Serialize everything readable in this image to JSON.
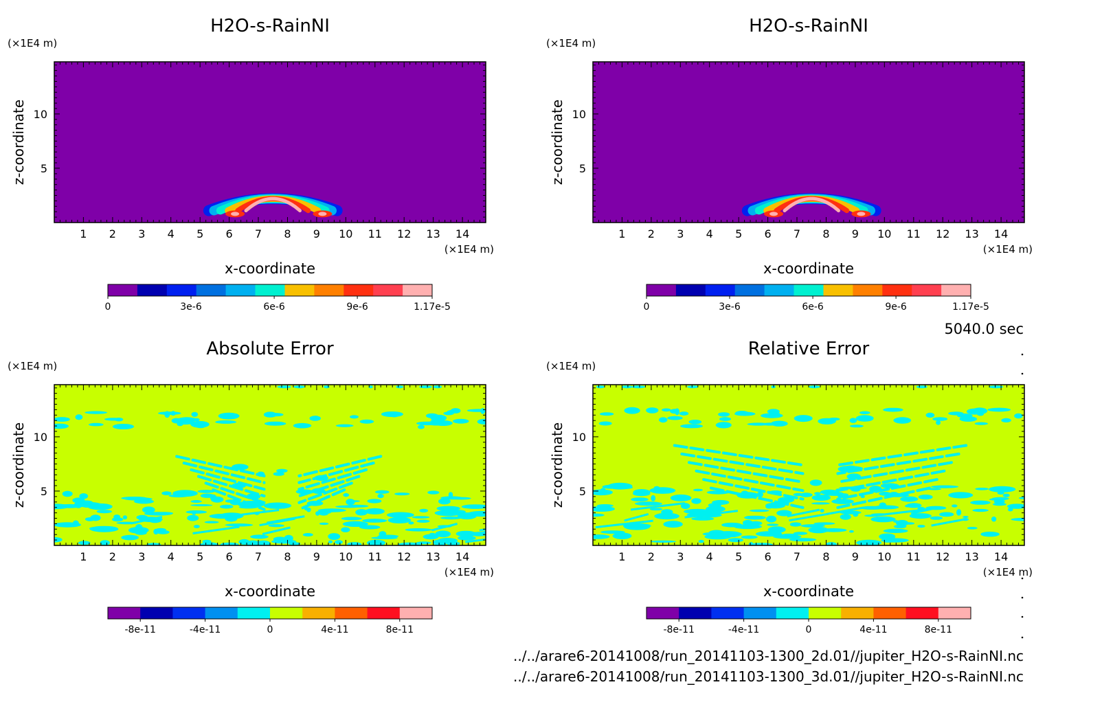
{
  "time_label": "5040.0 sec",
  "file_lines": [
    "../../arare6-20141008/run_20141103-1300_2d.01//jupiter_H2O-s-RainNI.nc",
    "../../arare6-20141008/run_20141103-1300_3d.01//jupiter_H2O-s-RainNI.nc"
  ],
  "colors": {
    "positive_scale": [
      "#7f00a8",
      "#0000b0",
      "#0020f0",
      "#0070e0",
      "#00b0f0",
      "#00f0d0",
      "#f8c000",
      "#ff8000",
      "#ff3010",
      "#ff4050",
      "#ffb0b0"
    ],
    "signed_scale": [
      "#7f00a8",
      "#0000b0",
      "#0030f0",
      "#0090f0",
      "#00f0f0",
      "#c8ff00",
      "#f8b000",
      "#ff6000",
      "#ff1020",
      "#ffb0b0"
    ]
  },
  "chart_data": [
    {
      "type": "heatmap",
      "title": "H2O-s-RainNI",
      "xlabel": "x-coordinate",
      "ylabel": "z-coordinate",
      "x_unit": "(×1E4 m)",
      "y_unit": "(×1E4 m)",
      "xlim": [
        0,
        14.8
      ],
      "ylim": [
        0,
        14.8
      ],
      "x_ticks": [
        1,
        2,
        3,
        4,
        5,
        6,
        7,
        8,
        9,
        10,
        11,
        12,
        13,
        14
      ],
      "y_ticks": [
        5,
        10
      ],
      "colorbar": {
        "ticks": [
          "0",
          "3e-6",
          "6e-6",
          "9e-6",
          "1.17e-5"
        ],
        "range": [
          0,
          1.17e-05
        ],
        "levels": 11
      },
      "background_value": 0,
      "features": [
        {
          "shape": "arc",
          "x_range": [
            5.3,
            9.7
          ],
          "z_range": [
            0.2,
            2.2
          ],
          "max_value": 1.17e-05,
          "max_at_x": [
            6.2,
            9.2
          ]
        }
      ]
    },
    {
      "type": "heatmap",
      "title": "H2O-s-RainNI",
      "xlabel": "x-coordinate",
      "ylabel": "z-coordinate",
      "x_unit": "(×1E4 m)",
      "y_unit": "(×1E4 m)",
      "xlim": [
        0,
        14.8
      ],
      "ylim": [
        0,
        14.8
      ],
      "x_ticks": [
        1,
        2,
        3,
        4,
        5,
        6,
        7,
        8,
        9,
        10,
        11,
        12,
        13,
        14
      ],
      "y_ticks": [
        5,
        10
      ],
      "colorbar": {
        "ticks": [
          "0",
          "3e-6",
          "6e-6",
          "9e-6",
          "1.17e-5"
        ],
        "range": [
          0,
          1.17e-05
        ],
        "levels": 11
      },
      "background_value": 0,
      "features": [
        {
          "shape": "arc",
          "x_range": [
            5.3,
            9.7
          ],
          "z_range": [
            0.2,
            2.2
          ],
          "max_value": 1.17e-05,
          "max_at_x": [
            6.2,
            9.2
          ]
        }
      ]
    },
    {
      "type": "heatmap",
      "title": "Absolute Error",
      "xlabel": "x-coordinate",
      "ylabel": "z-coordinate",
      "x_unit": "(×1E4 m)",
      "y_unit": "(×1E4 m)",
      "xlim": [
        0,
        14.8
      ],
      "ylim": [
        0,
        14.8
      ],
      "x_ticks": [
        1,
        2,
        3,
        4,
        5,
        6,
        7,
        8,
        9,
        10,
        11,
        12,
        13,
        14
      ],
      "y_ticks": [
        5,
        10
      ],
      "colorbar": {
        "ticks": [
          "-8e-11",
          "-4e-11",
          "0",
          "4e-11",
          "8e-11"
        ],
        "range": [
          -1e-10,
          1e-10
        ],
        "levels": 10
      },
      "background_value": 0,
      "features": [
        {
          "shape": "band",
          "z": 11.7,
          "x_range": [
            0,
            14.8
          ],
          "value": "negative"
        },
        {
          "shape": "chevrons",
          "x_range": [
            4.2,
            11.2
          ],
          "z_range": [
            4.5,
            8.2
          ],
          "apex_x": 7.8,
          "value": "negative"
        },
        {
          "shape": "patches",
          "x_range": [
            0,
            14.8
          ],
          "z_range": [
            0,
            5
          ],
          "value": "negative"
        }
      ]
    },
    {
      "type": "heatmap",
      "title": "Relative Error",
      "xlabel": "x-coordinate",
      "ylabel": "z-coordinate",
      "x_unit": "(×1E4 m)",
      "y_unit": "(×1E4 m)",
      "xlim": [
        0,
        14.8
      ],
      "ylim": [
        0,
        14.8
      ],
      "x_ticks": [
        1,
        2,
        3,
        4,
        5,
        6,
        7,
        8,
        9,
        10,
        11,
        12,
        13,
        14
      ],
      "y_ticks": [
        5,
        10
      ],
      "colorbar": {
        "ticks": [
          "-8e-11",
          "-4e-11",
          "0",
          "4e-11",
          "8e-11"
        ],
        "range": [
          -1e-10,
          1e-10
        ],
        "levels": 10
      },
      "background_value": 0,
      "features": [
        {
          "shape": "band",
          "z": 11.7,
          "x_range": [
            0,
            14.8
          ],
          "value": "negative"
        },
        {
          "shape": "chevrons",
          "x_range": [
            2.8,
            12.8
          ],
          "z_range": [
            4.5,
            9.2
          ],
          "apex_x": 7.8,
          "value": "negative"
        },
        {
          "shape": "patches",
          "x_range": [
            0,
            14.8
          ],
          "z_range": [
            0,
            5.5
          ],
          "value": "negative"
        }
      ]
    }
  ]
}
